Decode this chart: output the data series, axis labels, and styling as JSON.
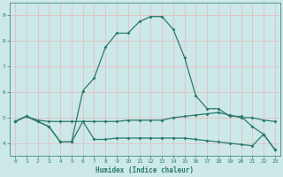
{
  "xlabel": "Humidex (Indice chaleur)",
  "bg_color": "#cce8e8",
  "line_color": "#2a7a6a",
  "grid_color": "#e8b8b8",
  "xlim": [
    -0.5,
    23.5
  ],
  "ylim": [
    3.5,
    9.5
  ],
  "xticks": [
    0,
    1,
    2,
    3,
    4,
    5,
    6,
    7,
    8,
    9,
    10,
    11,
    12,
    13,
    14,
    15,
    16,
    17,
    18,
    19,
    20,
    21,
    22,
    23
  ],
  "yticks": [
    4,
    5,
    6,
    7,
    8,
    9
  ],
  "line1_x": [
    0,
    1,
    2,
    3,
    4,
    5,
    6,
    7,
    8,
    9,
    10,
    11,
    12,
    13,
    14,
    15,
    16,
    17,
    18,
    19,
    20,
    21,
    22,
    23
  ],
  "line1_y": [
    4.85,
    5.05,
    4.9,
    4.85,
    4.85,
    4.85,
    4.85,
    4.85,
    4.85,
    4.85,
    4.9,
    4.9,
    4.9,
    4.9,
    5.0,
    5.05,
    5.1,
    5.15,
    5.2,
    5.1,
    5.0,
    5.0,
    4.9,
    4.85
  ],
  "line2_x": [
    0,
    1,
    2,
    3,
    4,
    5,
    6,
    7,
    8,
    9,
    10,
    11,
    12,
    13,
    14,
    15,
    16,
    17,
    18,
    19,
    20,
    21,
    22,
    23
  ],
  "line2_y": [
    4.85,
    5.05,
    4.85,
    4.65,
    4.05,
    4.05,
    4.85,
    4.15,
    4.15,
    4.2,
    4.2,
    4.2,
    4.2,
    4.2,
    4.2,
    4.2,
    4.15,
    4.1,
    4.05,
    4.0,
    3.95,
    3.9,
    4.35,
    3.75
  ],
  "line3_x": [
    0,
    1,
    2,
    3,
    4,
    5,
    6,
    7,
    8,
    9,
    10,
    11,
    12,
    13,
    14,
    15,
    16,
    17,
    18,
    19,
    20,
    21,
    22,
    23
  ],
  "line3_y": [
    4.85,
    5.05,
    4.85,
    4.65,
    4.05,
    4.05,
    6.05,
    6.55,
    7.75,
    8.3,
    8.3,
    8.75,
    8.95,
    8.95,
    8.45,
    7.35,
    5.85,
    5.35,
    5.35,
    5.05,
    5.05,
    4.65,
    4.35,
    3.75
  ]
}
